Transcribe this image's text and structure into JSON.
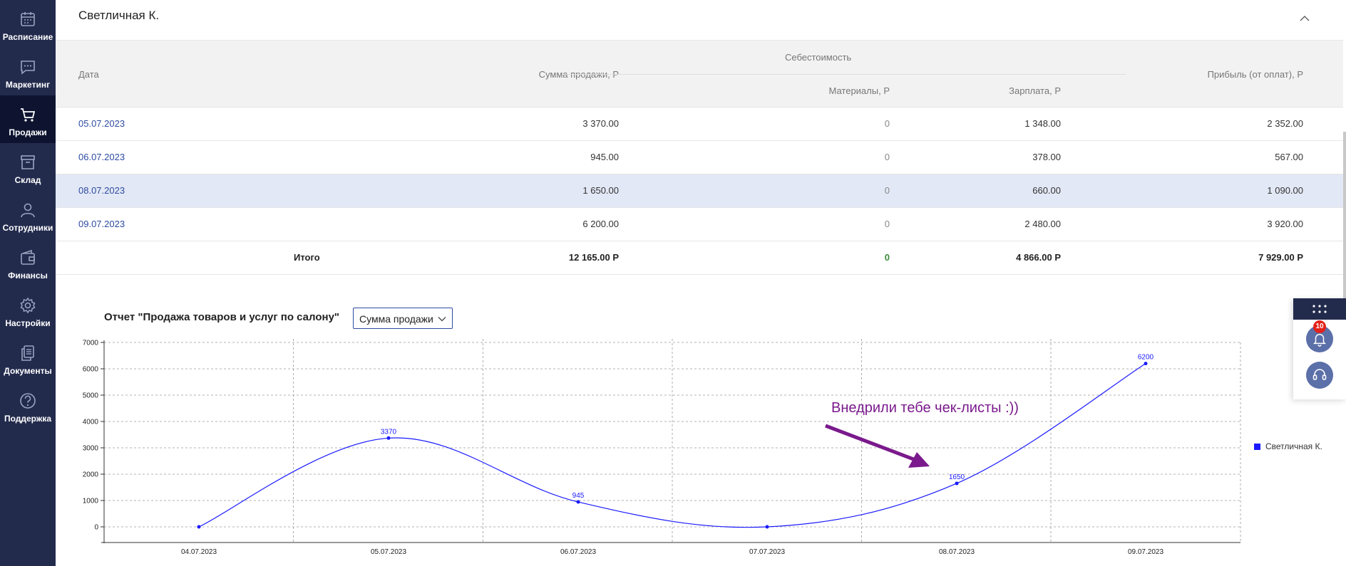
{
  "sidebar": {
    "items": [
      {
        "label": "Расписание",
        "icon": "calendar-icon"
      },
      {
        "label": "Маркетинг",
        "icon": "chat-icon"
      },
      {
        "label": "Продажи",
        "icon": "cart-icon",
        "active": true
      },
      {
        "label": "Склад",
        "icon": "archive-box-icon"
      },
      {
        "label": "Сотрудники",
        "icon": "user-icon"
      },
      {
        "label": "Финансы",
        "icon": "wallet-icon"
      },
      {
        "label": "Настройки",
        "icon": "gear-icon"
      },
      {
        "label": "Документы",
        "icon": "documents-icon"
      },
      {
        "label": "Поддержка",
        "icon": "help-icon"
      }
    ]
  },
  "employee": {
    "name": "Светличная К."
  },
  "table": {
    "headers": {
      "date": "Дата",
      "sales": "Сумма продажи, Р",
      "cost_group": "Себестоимость",
      "materials": "Материалы, Р",
      "salary": "Зарплата, Р",
      "profit": "Прибыль (от оплат), Р"
    },
    "rows": [
      {
        "date": "05.07.2023",
        "sales": "3 370.00",
        "materials": "0",
        "salary": "1 348.00",
        "profit": "2 352.00"
      },
      {
        "date": "06.07.2023",
        "sales": "945.00",
        "materials": "0",
        "salary": "378.00",
        "profit": "567.00"
      },
      {
        "date": "08.07.2023",
        "sales": "1 650.00",
        "materials": "0",
        "salary": "660.00",
        "profit": "1 090.00"
      },
      {
        "date": "09.07.2023",
        "sales": "6 200.00",
        "materials": "0",
        "salary": "2 480.00",
        "profit": "3 920.00"
      }
    ],
    "total": {
      "label": "Итого",
      "sales": "12 165.00 Р",
      "materials": "0",
      "salary": "4 866.00 Р",
      "profit": "7 929.00 Р"
    }
  },
  "report": {
    "title": "Отчет \"Продажа товаров и услуг по салону\"",
    "metric_select": "Сумма продажи"
  },
  "annotation": {
    "text": "Внедрили тебе чек-листы :))",
    "color": "#7a1a8c"
  },
  "widget": {
    "notification_count": "10"
  },
  "colors": {
    "sidebar": "#232b4d",
    "accent": "#2d4ba0",
    "series": "#1a1aff",
    "badge": "#e2231a"
  },
  "chart_data": {
    "type": "line",
    "categories": [
      "04.07.2023",
      "05.07.2023",
      "06.07.2023",
      "07.07.2023",
      "08.07.2023",
      "09.07.2023"
    ],
    "series": [
      {
        "name": "Светличная К.",
        "values": [
          0,
          3370,
          945,
          0,
          1650,
          6200
        ],
        "labels": [
          "",
          "3370",
          "945",
          "",
          "1650",
          "6200"
        ]
      }
    ],
    "yticks": [
      "7000",
      "6000",
      "5000",
      "4000",
      "3000",
      "2000",
      "1000",
      "0"
    ],
    "ylim": [
      0,
      7000
    ],
    "grid": true,
    "legend": "right"
  }
}
